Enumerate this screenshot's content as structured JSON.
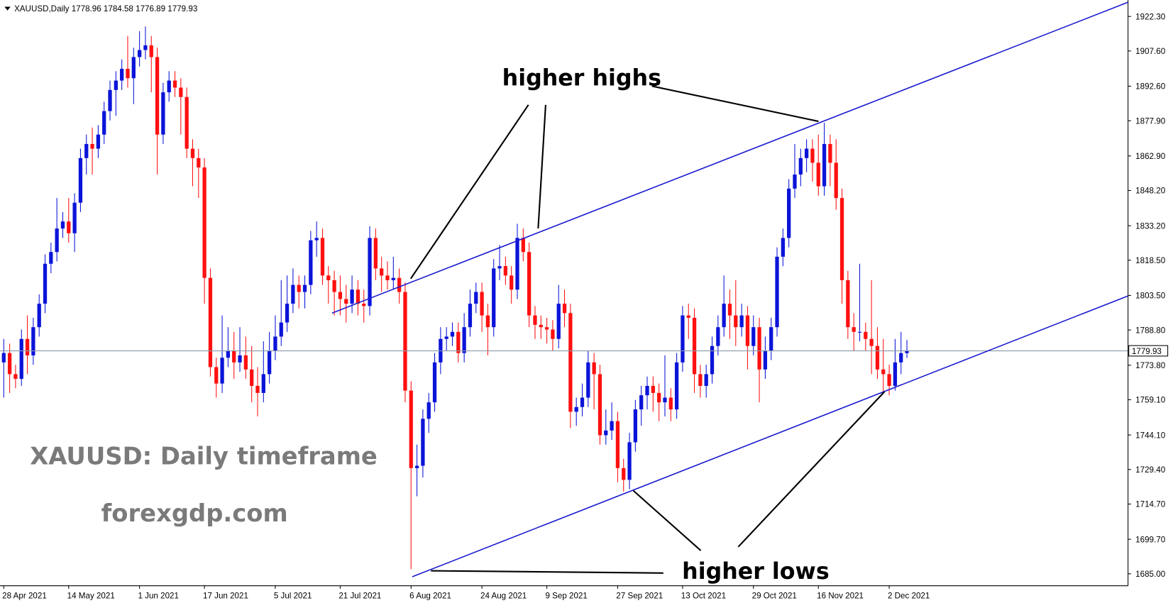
{
  "chart_data": {
    "type": "candlestick",
    "title": "XAUUSD,Daily  1778.96 1784.58 1776.89 1779.93",
    "annotations": [
      "higher highs",
      "higher lows",
      "XAUUSD: Daily timeframe",
      "forexgdp.com"
    ],
    "bull_color": "#0a14d8",
    "bear_color": "#ff1010",
    "ylim": [
      1679.9,
      1929.3
    ],
    "yticks": [
      {
        "value": 1922.3,
        "label": "1922.30"
      },
      {
        "value": 1907.6,
        "label": "1907.60"
      },
      {
        "value": 1892.6,
        "label": "1892.60"
      },
      {
        "value": 1877.9,
        "label": "1877.90"
      },
      {
        "value": 1862.9,
        "label": "1862.90"
      },
      {
        "value": 1848.2,
        "label": "1848.20"
      },
      {
        "value": 1833.2,
        "label": "1833.20"
      },
      {
        "value": 1818.5,
        "label": "1818.50"
      },
      {
        "value": 1803.5,
        "label": "1803.50"
      },
      {
        "value": 1788.8,
        "label": "1788.80"
      },
      {
        "value": 1773.8,
        "label": "1773.80"
      },
      {
        "value": 1759.1,
        "label": "1759.10"
      },
      {
        "value": 1744.1,
        "label": "1744.10"
      },
      {
        "value": 1729.4,
        "label": "1729.40"
      },
      {
        "value": 1714.7,
        "label": "1714.70"
      },
      {
        "value": 1699.7,
        "label": "1699.70"
      },
      {
        "value": 1685,
        "label": "1685.00"
      }
    ],
    "last_price": 1779.93,
    "categories": [
      "28 Apr 2021",
      null,
      null,
      null,
      null,
      null,
      null,
      null,
      null,
      null,
      null,
      "14 May 2021",
      null,
      null,
      null,
      null,
      null,
      null,
      null,
      null,
      null,
      null,
      null,
      "1 Jun 2021",
      null,
      null,
      null,
      null,
      null,
      null,
      null,
      null,
      null,
      null,
      "17 Jun 2021",
      null,
      null,
      null,
      null,
      null,
      null,
      null,
      null,
      null,
      null,
      null,
      "5 Jul 2021",
      null,
      null,
      null,
      null,
      null,
      null,
      null,
      null,
      null,
      null,
      "21 Jul 2021",
      null,
      null,
      null,
      null,
      null,
      null,
      null,
      null,
      null,
      null,
      null,
      "6 Aug 2021",
      null,
      null,
      null,
      null,
      null,
      null,
      null,
      null,
      null,
      null,
      null,
      "24 Aug 2021",
      null,
      null,
      null,
      null,
      null,
      null,
      null,
      null,
      null,
      null,
      "9 Sep 2021",
      null,
      null,
      null,
      null,
      null,
      null,
      null,
      null,
      null,
      null,
      null,
      "27 Sep 2021",
      null,
      null,
      null,
      null,
      null,
      null,
      null,
      null,
      null,
      null,
      "13 Oct 2021",
      null,
      null,
      null,
      null,
      null,
      null,
      null,
      null,
      null,
      null,
      null,
      "29 Oct 2021",
      null,
      null,
      null,
      null,
      null,
      null,
      null,
      null,
      null,
      null,
      "16 Nov 2021",
      null,
      null,
      null,
      null,
      null,
      null,
      null,
      null,
      null,
      null,
      null,
      "2 Dec 2021",
      null,
      null,
      null
    ],
    "open": [
      1775,
      1779,
      1770,
      1768,
      1785,
      1778,
      1790,
      1800,
      1817,
      1822,
      1832,
      1835,
      1830,
      1843,
      1862,
      1868,
      1866,
      1872,
      1882,
      1891,
      1895,
      1900,
      1896,
      1905,
      1908,
      1910,
      1905,
      1872,
      1890,
      1895,
      1892,
      1888,
      1866,
      1862,
      1858,
      1811,
      1773,
      1766,
      1777,
      1780,
      1775,
      1778,
      1772,
      1765,
      1762,
      1770,
      1780,
      1786,
      1792,
      1800,
      1808,
      1805,
      1808,
      1827,
      1828,
      1812,
      1810,
      1805,
      1802,
      1800,
      1806,
      1800,
      1799,
      1828,
      1815,
      1812,
      1810,
      1811,
      1805,
      1763,
      1730,
      1731,
      1751,
      1758,
      1775,
      1785,
      1786,
      1788,
      1779,
      1790,
      1800,
      1805,
      1795,
      1790,
      1815,
      1816,
      1812,
      1806,
      1828,
      1822,
      1795,
      1791,
      1790,
      1789,
      1785,
      1800,
      1796,
      1754,
      1756,
      1760,
      1775,
      1770,
      1744,
      1746,
      1750,
      1730,
      1725,
      1741,
      1755,
      1761,
      1765,
      1762,
      1758,
      1760,
      1755,
      1775,
      1795,
      1794,
      1770,
      1765,
      1770,
      1782,
      1790,
      1800,
      1795,
      1790,
      1795,
      1782,
      1790,
      1772,
      1780,
      1790,
      1820,
      1828,
      1849,
      1855,
      1862,
      1866,
      1860,
      1850,
      1868,
      1860,
      1845,
      1810,
      1790,
      1788,
      1788,
      1785,
      1782,
      1772,
      1770,
      1765,
      1775,
      1778.96
    ],
    "high": [
      1785,
      1783,
      1774,
      1789,
      1795,
      1794,
      1804,
      1821,
      1826,
      1845,
      1839,
      1845,
      1847,
      1866,
      1872,
      1875,
      1876,
      1886,
      1895,
      1899,
      1904,
      1914,
      1909,
      1916,
      1918,
      1914,
      1909,
      1894,
      1899,
      1899,
      1896,
      1892,
      1870,
      1866,
      1862,
      1815,
      1777,
      1795,
      1790,
      1788,
      1790,
      1786,
      1782,
      1773,
      1784,
      1788,
      1795,
      1810,
      1812,
      1815,
      1812,
      1812,
      1831,
      1835,
      1832,
      1816,
      1814,
      1812,
      1808,
      1812,
      1810,
      1806,
      1833,
      1832,
      1820,
      1818,
      1820,
      1815,
      1809,
      1767,
      1740,
      1755,
      1762,
      1779,
      1790,
      1790,
      1792,
      1792,
      1796,
      1806,
      1809,
      1809,
      1800,
      1819,
      1825,
      1820,
      1816,
      1834,
      1832,
      1826,
      1799,
      1795,
      1794,
      1793,
      1808,
      1806,
      1800,
      1760,
      1766,
      1780,
      1779,
      1774,
      1755,
      1758,
      1754,
      1734,
      1745,
      1759,
      1765,
      1769,
      1769,
      1766,
      1778,
      1764,
      1779,
      1799,
      1800,
      1798,
      1774,
      1774,
      1786,
      1795,
      1812,
      1806,
      1810,
      1800,
      1799,
      1795,
      1794,
      1786,
      1794,
      1824,
      1832,
      1853,
      1868,
      1866,
      1870,
      1870,
      1872,
      1877,
      1872,
      1870,
      1849,
      1814,
      1796,
      1817,
      1792,
      1810,
      1790,
      1785,
      1774,
      1785,
      1788,
      1784.58
    ],
    "low": [
      1760,
      1762,
      1764,
      1765,
      1770,
      1774,
      1786,
      1796,
      1813,
      1818,
      1828,
      1826,
      1822,
      1839,
      1855,
      1855,
      1862,
      1868,
      1878,
      1880,
      1891,
      1892,
      1885,
      1901,
      1904,
      1890,
      1855,
      1868,
      1886,
      1888,
      1872,
      1862,
      1850,
      1845,
      1800,
      1769,
      1760,
      1762,
      1773,
      1768,
      1771,
      1768,
      1758,
      1752,
      1758,
      1766,
      1776,
      1782,
      1788,
      1796,
      1798,
      1798,
      1804,
      1820,
      1808,
      1800,
      1795,
      1795,
      1792,
      1796,
      1795,
      1792,
      1795,
      1810,
      1805,
      1806,
      1806,
      1800,
      1758,
      1687,
      1718,
      1726,
      1745,
      1754,
      1770,
      1780,
      1782,
      1775,
      1775,
      1786,
      1796,
      1788,
      1778,
      1786,
      1810,
      1808,
      1800,
      1802,
      1818,
      1790,
      1785,
      1785,
      1783,
      1780,
      1781,
      1790,
      1747,
      1748,
      1752,
      1756,
      1755,
      1740,
      1740,
      1742,
      1724,
      1720,
      1721,
      1737,
      1748,
      1755,
      1754,
      1750,
      1752,
      1750,
      1751,
      1771,
      1785,
      1762,
      1760,
      1760,
      1766,
      1778,
      1786,
      1785,
      1782,
      1786,
      1772,
      1778,
      1758,
      1768,
      1776,
      1786,
      1816,
      1824,
      1845,
      1850,
      1856,
      1852,
      1846,
      1846,
      1850,
      1840,
      1800,
      1785,
      1780,
      1784,
      1780,
      1770,
      1768,
      1762,
      1761,
      1763,
      1770,
      1776.89
    ],
    "close": [
      1779,
      1770,
      1768,
      1785,
      1778,
      1790,
      1800,
      1817,
      1822,
      1832,
      1835,
      1830,
      1843,
      1862,
      1868,
      1866,
      1872,
      1882,
      1891,
      1895,
      1900,
      1896,
      1905,
      1908,
      1910,
      1905,
      1872,
      1890,
      1895,
      1892,
      1888,
      1866,
      1862,
      1858,
      1811,
      1773,
      1766,
      1777,
      1780,
      1775,
      1778,
      1772,
      1765,
      1762,
      1770,
      1780,
      1786,
      1792,
      1800,
      1808,
      1805,
      1808,
      1827,
      1828,
      1812,
      1810,
      1805,
      1802,
      1800,
      1806,
      1800,
      1799,
      1828,
      1815,
      1812,
      1810,
      1811,
      1805,
      1763,
      1730,
      1731,
      1751,
      1758,
      1775,
      1785,
      1786,
      1788,
      1779,
      1790,
      1800,
      1805,
      1795,
      1790,
      1815,
      1816,
      1812,
      1806,
      1828,
      1822,
      1795,
      1791,
      1790,
      1789,
      1785,
      1800,
      1796,
      1754,
      1756,
      1760,
      1775,
      1770,
      1744,
      1746,
      1750,
      1730,
      1725,
      1741,
      1755,
      1761,
      1765,
      1762,
      1758,
      1760,
      1755,
      1775,
      1795,
      1794,
      1770,
      1765,
      1770,
      1782,
      1790,
      1800,
      1795,
      1790,
      1795,
      1782,
      1790,
      1772,
      1780,
      1790,
      1820,
      1828,
      1849,
      1855,
      1862,
      1866,
      1860,
      1850,
      1868,
      1860,
      1845,
      1810,
      1790,
      1788,
      1788,
      1785,
      1782,
      1772,
      1770,
      1765,
      1775,
      1778.96,
      1779.93
    ]
  }
}
